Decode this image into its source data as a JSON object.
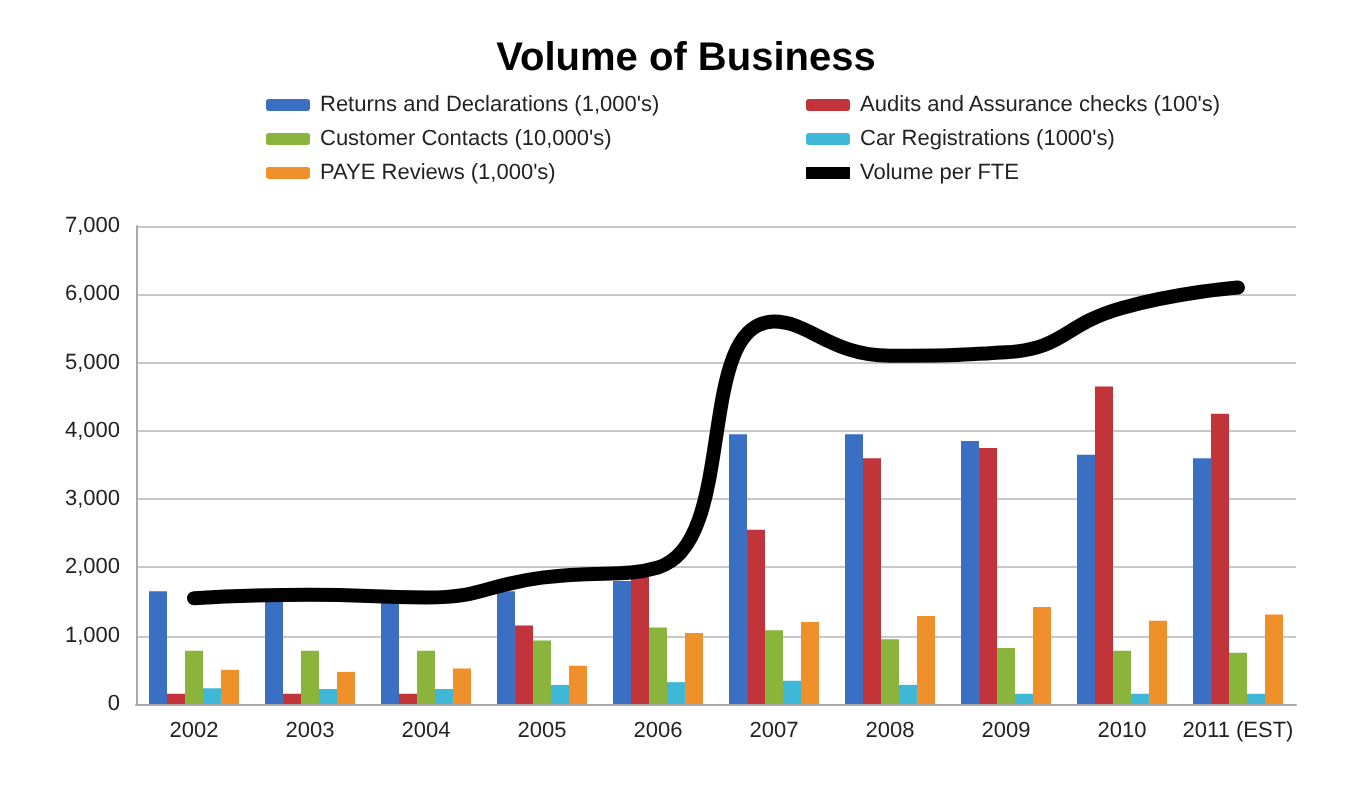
{
  "chart_data": {
    "type": "bar",
    "title": "Volume of Business",
    "categories": [
      "2002",
      "2003",
      "2004",
      "2005",
      "2006",
      "2007",
      "2008",
      "2009",
      "2010",
      "2011 (EST)"
    ],
    "series": [
      {
        "name": "Returns and Declarations (1,000's)",
        "color": "#3b6fc4",
        "values": [
          1650,
          1550,
          1550,
          1650,
          1800,
          3950,
          3950,
          3850,
          3650,
          3600
        ]
      },
      {
        "name": "Audits and Assurance checks (100's)",
        "color": "#c0343a",
        "values": [
          150,
          150,
          150,
          1150,
          1900,
          2550,
          3600,
          3750,
          4650,
          4250
        ]
      },
      {
        "name": "Customer Contacts (10,000's)",
        "color": "#8ab43c",
        "values": [
          780,
          780,
          780,
          930,
          1120,
          1080,
          950,
          820,
          780,
          750
        ]
      },
      {
        "name": "Car Registrations (1000's)",
        "color": "#3fb8d8",
        "values": [
          230,
          220,
          220,
          280,
          320,
          340,
          280,
          150,
          150,
          150
        ]
      },
      {
        "name": "PAYE Reviews (1,000's)",
        "color": "#f0902a",
        "values": [
          500,
          470,
          520,
          560,
          1040,
          1200,
          1290,
          1420,
          1220,
          1310
        ]
      },
      {
        "name": "Volume per FTE",
        "type": "line",
        "color": "#000000",
        "values": [
          1550,
          1600,
          1560,
          1850,
          2000,
          5600,
          5100,
          5150,
          5800,
          6100
        ]
      }
    ],
    "ylim": [
      0,
      7000
    ],
    "yticks": [
      {
        "value": 0,
        "label": "0"
      },
      {
        "value": 1000,
        "label": "1,000"
      },
      {
        "value": 2000,
        "label": "2,000"
      },
      {
        "value": 3000,
        "label": "3,000"
      },
      {
        "value": 4000,
        "label": "4,000"
      },
      {
        "value": 5000,
        "label": "5,000"
      },
      {
        "value": 6000,
        "label": "6,000"
      },
      {
        "value": 7000,
        "label": "7,000"
      }
    ],
    "grid": "y",
    "legend": "top",
    "line_style": "solid"
  }
}
